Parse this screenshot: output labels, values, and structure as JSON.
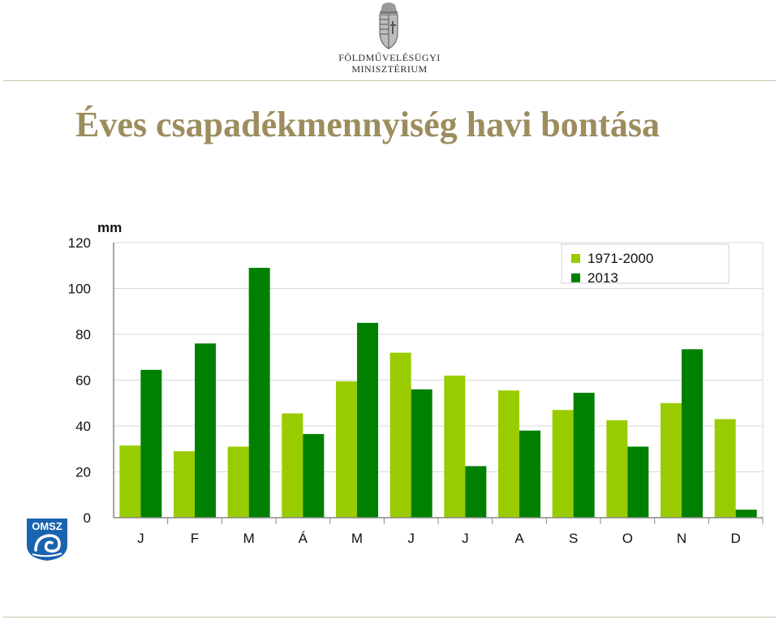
{
  "header": {
    "ministry_line1": "FÖLDMŰVELÉSÜGYI",
    "ministry_line2": "MINISZTÉRIUM",
    "crest_icon": "hungarian-coat-of-arms-icon"
  },
  "title": "Éves csapadékmennyiség havi bontása",
  "logo": {
    "text": "OMSZ",
    "color": "#1a63b0"
  },
  "colors": {
    "title": "#9c8d5d",
    "series_1971_2000": "#99cc00",
    "series_2013": "#008000"
  },
  "chart_data": {
    "type": "bar",
    "ylabel": "mm",
    "ylim": [
      0,
      120
    ],
    "yticks": [
      0,
      20,
      40,
      60,
      80,
      100,
      120
    ],
    "grid": true,
    "legend_position": "top-right",
    "categories": [
      "J",
      "F",
      "M",
      "Á",
      "M",
      "J",
      "J",
      "A",
      "S",
      "O",
      "N",
      "D"
    ],
    "series": [
      {
        "name": "1971-2000",
        "color": "#99cc00",
        "values": [
          31.5,
          29,
          31,
          45.5,
          59.5,
          72,
          62,
          55.5,
          47,
          42.5,
          50,
          43
        ]
      },
      {
        "name": "2013",
        "color": "#008000",
        "values": [
          64.5,
          76,
          109,
          36.5,
          85,
          56,
          22.5,
          38,
          54.5,
          31,
          73.5,
          3.5
        ]
      }
    ]
  }
}
